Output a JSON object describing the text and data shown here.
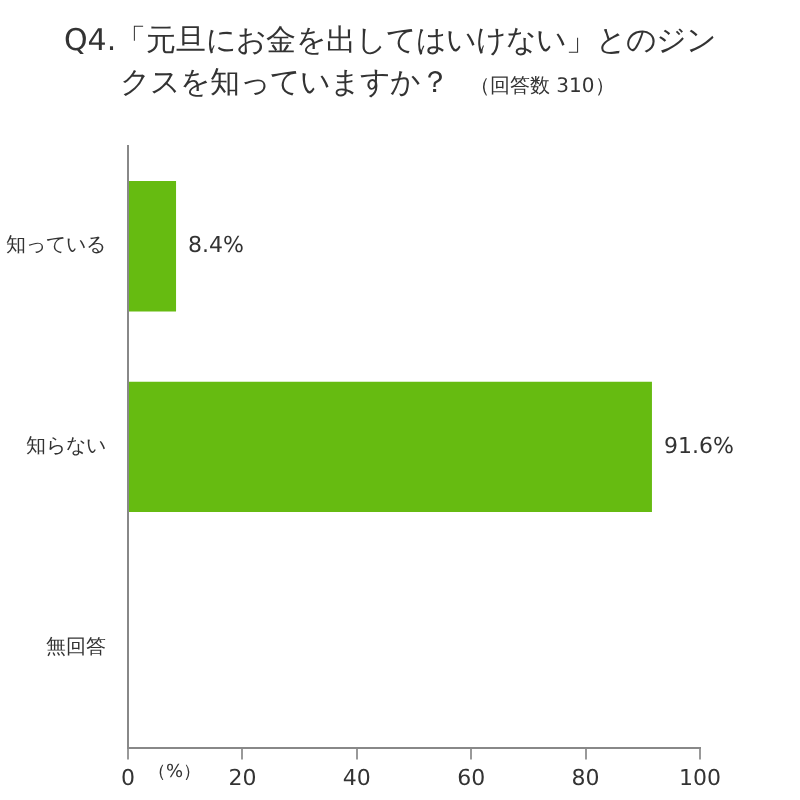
{
  "chart_data": {
    "type": "bar",
    "orientation": "horizontal",
    "title": "Q4.「元旦にお金を出してはいけない」とのジンクスを知っていますか？",
    "subtitle": "（回答数 310）",
    "xlabel": "（%）",
    "categories": [
      "知っている",
      "知らない",
      "無回答"
    ],
    "values": [
      8.4,
      91.6,
      0
    ],
    "color": "#66bb11",
    "value_labels": [
      "8.4%",
      "91.6%",
      null
    ],
    "xlim": [
      0,
      100
    ],
    "xticks": [
      0,
      20,
      40,
      60,
      80,
      100
    ],
    "grid": false,
    "legend": false
  }
}
